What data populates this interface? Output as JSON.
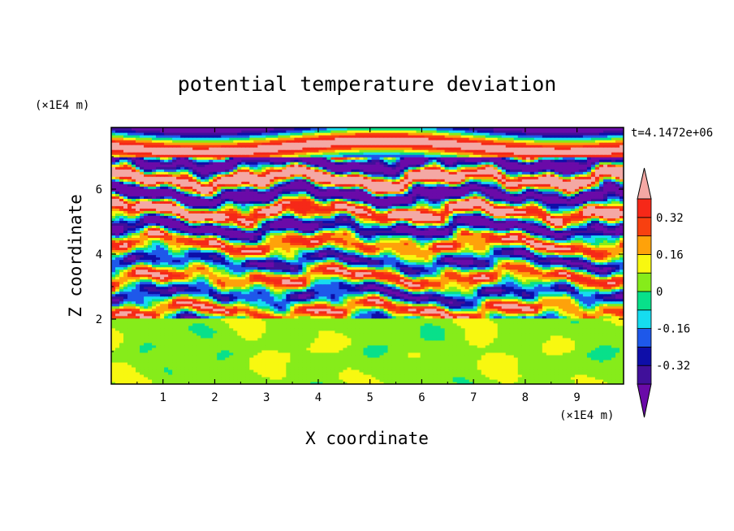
{
  "chart_data": {
    "type": "heatmap",
    "title": "potential temperature deviation",
    "xlabel": "X coordinate",
    "ylabel": "Z coordinate",
    "x_unit": "(×1E4 m)",
    "y_unit": "(×1E4 m)",
    "time_label": "t=4.1472e+06",
    "xlim": [
      0,
      9.9
    ],
    "ylim": [
      0,
      7.9
    ],
    "x_ticks": [
      1,
      2,
      3,
      4,
      5,
      6,
      7,
      8,
      9
    ],
    "x_tick_labels": [
      "1",
      "2",
      "3",
      "4",
      "5",
      "6",
      "7",
      "8",
      "9"
    ],
    "y_ticks": [
      2,
      4,
      6
    ],
    "y_tick_labels": [
      "2",
      "4",
      "6"
    ],
    "colorbar": {
      "levels": [
        -0.4,
        -0.32,
        -0.24,
        -0.16,
        -0.08,
        0,
        0.08,
        0.16,
        0.24,
        0.32,
        0.4
      ],
      "colors": [
        "#6a0aa8",
        "#40109a",
        "#0e0ea8",
        "#1e58ea",
        "#16dcf0",
        "#08e08a",
        "#86ec1a",
        "#f8f810",
        "#fea20a",
        "#f84010",
        "#f62818",
        "#f4a8a4"
      ],
      "labels": [
        "0.32",
        "0.16",
        "0",
        "-0.16",
        "-0.32"
      ],
      "label_values": [
        0.32,
        0.16,
        0,
        -0.16,
        -0.32
      ],
      "extend": "both"
    },
    "grid": false,
    "legend": "right"
  }
}
